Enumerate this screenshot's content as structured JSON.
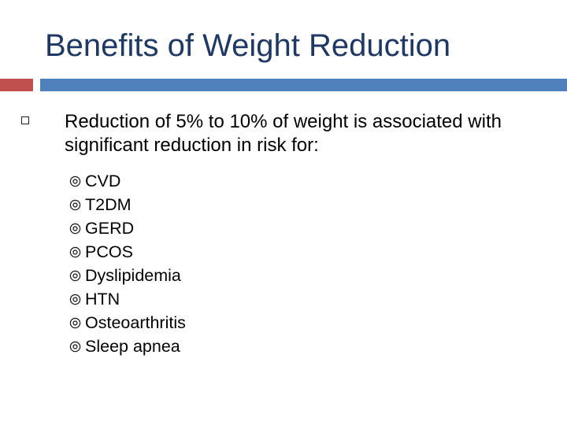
{
  "slide": {
    "title": "Benefits of Weight Reduction",
    "colors": {
      "title": "#1f3864",
      "accent_red": "#c0504d",
      "accent_blue": "#4f81bd"
    },
    "main_bullet": {
      "icon": "hollow-square-bullet-icon",
      "text": "Reduction of 5% to 10% of weight is associated with significant reduction in risk for:"
    },
    "sub_bullet_icon": "circled-dot-bullet-icon",
    "sub_items": [
      "CVD",
      "T2DM",
      "GERD",
      "PCOS",
      "Dyslipidemia",
      "HTN",
      "Osteoarthritis",
      "Sleep apnea"
    ]
  }
}
